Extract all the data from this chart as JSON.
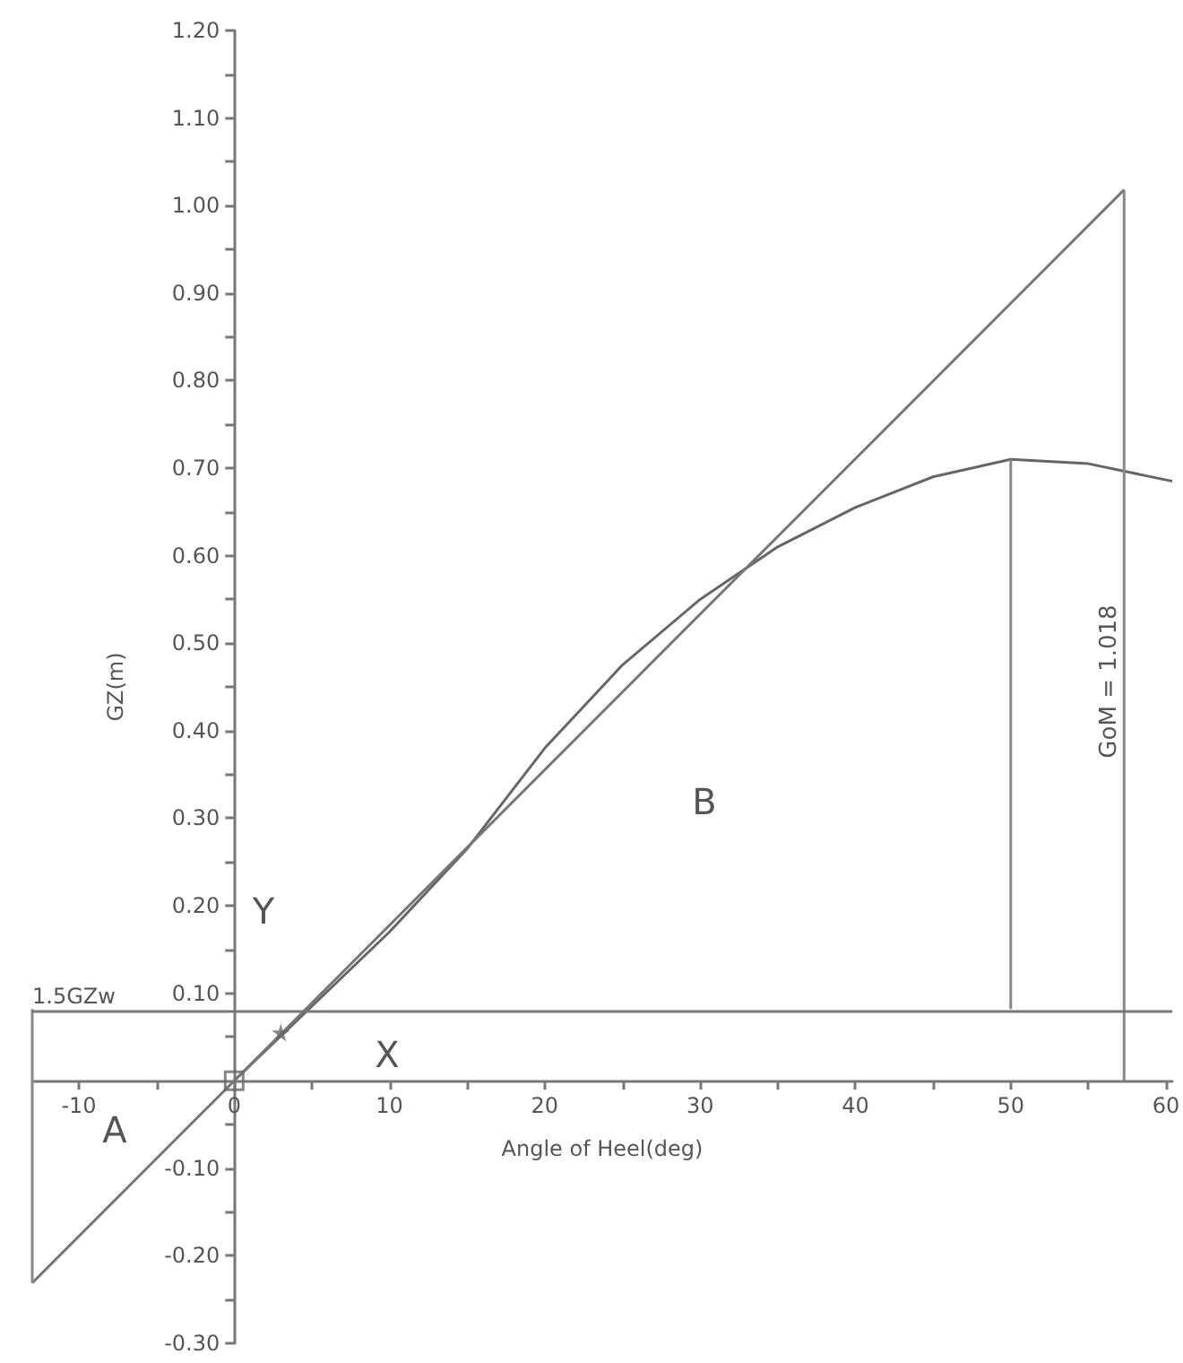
{
  "chart_data": {
    "type": "line",
    "xlabel": "Angle of Heel(deg)",
    "ylabel": "GZ(m)",
    "xlim": [
      -13,
      60.4
    ],
    "ylim": [
      -0.3,
      1.2
    ],
    "xticks": [
      {
        "value": -10,
        "label": "-10"
      },
      {
        "value": -5,
        "label": null
      },
      0,
      {
        "value": 5,
        "label": null
      },
      10,
      {
        "value": 15,
        "label": null
      },
      20,
      {
        "value": 25,
        "label": null
      },
      30,
      {
        "value": 35,
        "label": null
      },
      40,
      {
        "value": 45,
        "label": null
      },
      50,
      {
        "value": 55,
        "label": null
      },
      60
    ],
    "yticks": [
      {
        "value": -0.3,
        "label": "-0.30"
      },
      {
        "value": -0.25,
        "label": null
      },
      {
        "value": -0.2,
        "label": "-0.20"
      },
      {
        "value": -0.15,
        "label": null
      },
      {
        "value": -0.1,
        "label": "-0.10"
      },
      {
        "value": -0.05,
        "label": null
      },
      {
        "value": 0.05,
        "label": null
      },
      {
        "value": 0.1,
        "label": "0.10"
      },
      {
        "value": 0.15,
        "label": null
      },
      {
        "value": 0.2,
        "label": "0.20"
      },
      {
        "value": 0.25,
        "label": null
      },
      {
        "value": 0.3,
        "label": "0.30"
      },
      {
        "value": 0.35,
        "label": null
      },
      {
        "value": 0.4,
        "label": "0.40"
      },
      {
        "value": 0.45,
        "label": null
      },
      {
        "value": 0.5,
        "label": "0.50"
      },
      {
        "value": 0.55,
        "label": null
      },
      {
        "value": 0.6,
        "label": "0.60"
      },
      {
        "value": 0.65,
        "label": null
      },
      {
        "value": 0.7,
        "label": "0.70"
      },
      {
        "value": 0.75,
        "label": null
      },
      {
        "value": 0.8,
        "label": "0.80"
      },
      {
        "value": 0.85,
        "label": null
      },
      {
        "value": 0.9,
        "label": "0.90"
      },
      {
        "value": 0.95,
        "label": null
      },
      {
        "value": 1.0,
        "label": "1.00"
      },
      {
        "value": 1.05,
        "label": null
      },
      {
        "value": 1.1,
        "label": "1.10"
      },
      {
        "value": 1.15,
        "label": null
      },
      {
        "value": 1.2,
        "label": "1.20"
      }
    ],
    "series": [
      {
        "color": "#666666",
        "x": [
          0,
          5,
          10,
          15,
          20,
          25,
          30,
          35,
          40,
          45,
          50,
          55,
          60.4
        ],
        "values": [
          0,
          0.085,
          0.17,
          0.265,
          0.38,
          0.475,
          0.55,
          0.61,
          0.655,
          0.69,
          0.71,
          0.705,
          0.685
        ]
      },
      {
        "color": "#777777",
        "x": [
          -13,
          57.3
        ],
        "values": [
          -0.231,
          1.018
        ]
      },
      {
        "type": "line",
        "color": "#888888",
        "x": [
          57.3,
          57.3
        ],
        "values": [
          0,
          1.018
        ]
      },
      {
        "type": "line",
        "color": "#888888",
        "x": [
          50,
          50
        ],
        "values": [
          0.082,
          0.71
        ]
      },
      {
        "type": "line",
        "color": "#888888",
        "x": [
          -13,
          -13
        ],
        "values": [
          0.082,
          -0.231
        ]
      },
      {
        "type": "scatter",
        "marker": "square",
        "color": "#666666",
        "x": [
          0
        ],
        "values": [
          0
        ]
      },
      {
        "type": "scatter",
        "marker": "star",
        "color": "#666666",
        "x": [
          3
        ],
        "values": [
          0.055
        ]
      }
    ],
    "ref_lines": [
      {
        "axis": "y",
        "value": 0.082,
        "label": "1.5GZw",
        "color": "#777777"
      }
    ],
    "annotations": [
      "B",
      "A",
      "X",
      "Y",
      "GoM = 1.018"
    ]
  }
}
